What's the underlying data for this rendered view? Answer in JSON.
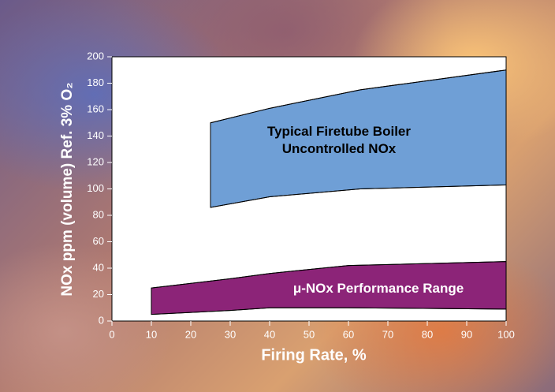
{
  "chart_data": {
    "type": "range-area",
    "x_label": "Firing Rate, %",
    "y_label": "NOx ppm (volume) Ref. 3% O₂",
    "xlim": [
      0,
      100
    ],
    "xticks": [
      0,
      10,
      20,
      30,
      40,
      50,
      60,
      70,
      80,
      90,
      100
    ],
    "ylim": [
      0,
      200
    ],
    "yticks": [
      0,
      20,
      40,
      60,
      80,
      100,
      120,
      140,
      160,
      180,
      200
    ],
    "series": [
      {
        "name": "Typical Firetube Boiler Uncontrolled NOx",
        "color": "#6f9fd6",
        "x": [
          25,
          40,
          63,
          100
        ],
        "high": [
          150,
          161,
          175,
          190
        ],
        "low": [
          86,
          94,
          100,
          103
        ]
      },
      {
        "name": "μ-NOx Performance Range",
        "color": "#8c2478",
        "x": [
          10,
          30,
          40,
          60,
          100
        ],
        "high": [
          25,
          32,
          36,
          42,
          45
        ],
        "low": [
          5,
          8,
          10,
          10,
          9
        ]
      }
    ]
  }
}
